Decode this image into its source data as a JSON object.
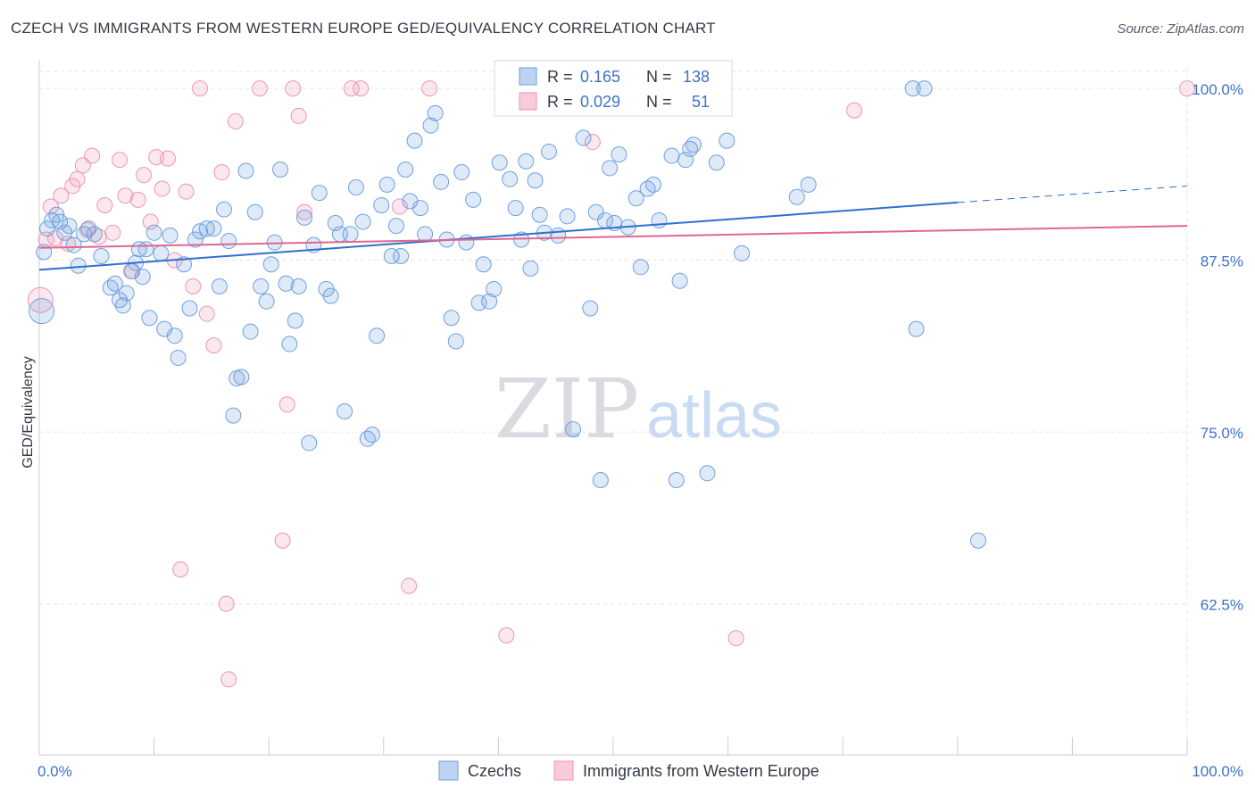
{
  "header": {
    "title": "CZECH VS IMMIGRANTS FROM WESTERN EUROPE GED/EQUIVALENCY CORRELATION CHART",
    "source": "Source: ZipAtlas.com"
  },
  "watermark": {
    "zip": "ZIP",
    "atlas": "atlas"
  },
  "colors": {
    "czechs": "#6f9fde",
    "immigrants": "#ee95b2",
    "czechs_line": "#2f6fce",
    "immigrants_line": "#e0668f",
    "tick_label": "#3d72c9"
  },
  "stats": {
    "czechs": {
      "r_label": "R =",
      "r": "0.165",
      "n_label": "N =",
      "n": "138"
    },
    "immigrants": {
      "r_label": "R =",
      "r": "0.029",
      "n_label": "N =",
      "n": "51"
    }
  },
  "chart_data": {
    "type": "scatter",
    "title": "CZECH VS IMMIGRANTS FROM WESTERN EUROPE GED/EQUIVALENCY CORRELATION CHART",
    "xlabel": "",
    "ylabel": "GED/Equivalency",
    "xlim": [
      0,
      100
    ],
    "ylim": [
      51.5,
      101.5
    ],
    "x_tick_labels": [
      "0.0%",
      "100.0%"
    ],
    "y_ticks": [
      62.5,
      75.0,
      87.5,
      100.0
    ],
    "y_tick_labels": [
      "62.5%",
      "75.0%",
      "87.5%",
      "100.0%"
    ],
    "grid": true,
    "legend_position": "bottom-center",
    "series": [
      {
        "name": "Czechs",
        "color": "#6f9fde",
        "trend": {
          "x": [
            0,
            80,
            100
          ],
          "y": [
            86.8,
            91.7,
            92.9
          ],
          "solid_until": 80
        },
        "points": [
          [
            0.2,
            83.8
          ],
          [
            0.4,
            88.1
          ],
          [
            0.7,
            89.8
          ],
          [
            1.1,
            90.4
          ],
          [
            1.5,
            90.8
          ],
          [
            1.8,
            90.3
          ],
          [
            2.2,
            89.5
          ],
          [
            2.6,
            90.0
          ],
          [
            3.0,
            88.6
          ],
          [
            3.4,
            87.1
          ],
          [
            3.9,
            89.4
          ],
          [
            4.3,
            89.8
          ],
          [
            4.8,
            89.4
          ],
          [
            5.4,
            87.8
          ],
          [
            6.2,
            85.5
          ],
          [
            6.6,
            85.8
          ],
          [
            7.0,
            84.6
          ],
          [
            7.3,
            84.2
          ],
          [
            7.6,
            85.1
          ],
          [
            8.1,
            86.7
          ],
          [
            8.4,
            87.3
          ],
          [
            8.7,
            88.3
          ],
          [
            9.0,
            86.3
          ],
          [
            9.3,
            88.3
          ],
          [
            9.6,
            83.3
          ],
          [
            10.0,
            89.5
          ],
          [
            10.6,
            88.0
          ],
          [
            10.9,
            82.5
          ],
          [
            11.4,
            89.3
          ],
          [
            11.8,
            82.0
          ],
          [
            12.1,
            80.4
          ],
          [
            12.6,
            87.2
          ],
          [
            13.1,
            84.0
          ],
          [
            13.6,
            89.0
          ],
          [
            14.0,
            89.6
          ],
          [
            14.6,
            89.8
          ],
          [
            15.2,
            89.8
          ],
          [
            15.7,
            85.6
          ],
          [
            16.1,
            91.2
          ],
          [
            16.5,
            88.9
          ],
          [
            16.9,
            76.2
          ],
          [
            17.2,
            78.9
          ],
          [
            17.6,
            79.0
          ],
          [
            18.0,
            94.0
          ],
          [
            18.4,
            82.3
          ],
          [
            18.8,
            91.0
          ],
          [
            19.3,
            85.6
          ],
          [
            19.8,
            84.5
          ],
          [
            20.2,
            87.2
          ],
          [
            20.5,
            88.8
          ],
          [
            21.0,
            94.1
          ],
          [
            21.5,
            85.8
          ],
          [
            21.8,
            81.4
          ],
          [
            22.3,
            83.1
          ],
          [
            22.6,
            85.6
          ],
          [
            23.1,
            90.6
          ],
          [
            23.5,
            74.2
          ],
          [
            23.9,
            88.6
          ],
          [
            24.4,
            92.4
          ],
          [
            25.0,
            85.4
          ],
          [
            25.4,
            84.9
          ],
          [
            25.8,
            90.2
          ],
          [
            26.2,
            89.4
          ],
          [
            26.6,
            76.5
          ],
          [
            27.1,
            89.4
          ],
          [
            27.6,
            92.8
          ],
          [
            28.2,
            90.3
          ],
          [
            28.6,
            74.5
          ],
          [
            29.0,
            74.8
          ],
          [
            29.4,
            82.0
          ],
          [
            29.8,
            91.5
          ],
          [
            30.3,
            93.0
          ],
          [
            30.7,
            87.8
          ],
          [
            31.1,
            90.0
          ],
          [
            31.5,
            87.8
          ],
          [
            31.9,
            94.1
          ],
          [
            32.3,
            91.8
          ],
          [
            32.7,
            96.2
          ],
          [
            33.2,
            91.3
          ],
          [
            33.6,
            89.4
          ],
          [
            34.1,
            97.3
          ],
          [
            34.5,
            98.2
          ],
          [
            35.0,
            93.2
          ],
          [
            35.5,
            89.0
          ],
          [
            35.9,
            83.3
          ],
          [
            36.3,
            81.6
          ],
          [
            36.8,
            93.9
          ],
          [
            37.2,
            88.8
          ],
          [
            37.8,
            91.9
          ],
          [
            38.3,
            84.4
          ],
          [
            38.7,
            87.2
          ],
          [
            39.2,
            84.5
          ],
          [
            39.6,
            85.4
          ],
          [
            40.1,
            94.6
          ],
          [
            40.6,
            98.6
          ],
          [
            41.0,
            93.4
          ],
          [
            41.5,
            91.3
          ],
          [
            42.0,
            89.0
          ],
          [
            42.4,
            94.7
          ],
          [
            42.8,
            86.9
          ],
          [
            43.2,
            93.3
          ],
          [
            43.6,
            90.8
          ],
          [
            44.0,
            89.5
          ],
          [
            44.4,
            95.4
          ],
          [
            45.2,
            89.3
          ],
          [
            45.6,
            100.0
          ],
          [
            46.0,
            90.7
          ],
          [
            46.5,
            75.2
          ],
          [
            47.4,
            96.4
          ],
          [
            48.0,
            84.0
          ],
          [
            48.5,
            91.0
          ],
          [
            48.9,
            71.5
          ],
          [
            49.3,
            90.4
          ],
          [
            49.7,
            94.2
          ],
          [
            50.1,
            90.2
          ],
          [
            50.5,
            95.2
          ],
          [
            51.3,
            89.9
          ],
          [
            52.0,
            92.0
          ],
          [
            52.4,
            87.0
          ],
          [
            53.0,
            92.7
          ],
          [
            53.5,
            93.0
          ],
          [
            54.0,
            90.4
          ],
          [
            55.1,
            95.1
          ],
          [
            55.5,
            71.5
          ],
          [
            55.8,
            86.0
          ],
          [
            56.3,
            94.8
          ],
          [
            56.7,
            95.6
          ],
          [
            57.0,
            95.9
          ],
          [
            58.2,
            72.0
          ],
          [
            59.0,
            94.6
          ],
          [
            59.9,
            96.2
          ],
          [
            61.2,
            88.0
          ],
          [
            66.0,
            92.1
          ],
          [
            67.0,
            93.0
          ],
          [
            76.1,
            100.0
          ],
          [
            76.4,
            82.5
          ],
          [
            77.1,
            100.0
          ],
          [
            81.8,
            67.1
          ]
        ]
      },
      {
        "name": "Immigrants from Western Europe",
        "color": "#ee95b2",
        "trend": {
          "x": [
            0,
            100
          ],
          "y": [
            88.4,
            90.0
          ]
        },
        "points": [
          [
            0.1,
            84.6
          ],
          [
            0.6,
            89.0
          ],
          [
            1.0,
            91.4
          ],
          [
            1.4,
            89.1
          ],
          [
            1.9,
            92.2
          ],
          [
            2.5,
            88.7
          ],
          [
            2.9,
            92.9
          ],
          [
            3.3,
            93.4
          ],
          [
            3.8,
            94.4
          ],
          [
            4.2,
            89.7
          ],
          [
            4.6,
            95.1
          ],
          [
            5.2,
            89.2
          ],
          [
            5.7,
            91.5
          ],
          [
            6.4,
            89.5
          ],
          [
            7.0,
            94.8
          ],
          [
            7.5,
            92.2
          ],
          [
            8.0,
            86.7
          ],
          [
            8.6,
            91.9
          ],
          [
            9.1,
            93.7
          ],
          [
            9.7,
            90.3
          ],
          [
            10.2,
            95.0
          ],
          [
            10.7,
            92.7
          ],
          [
            11.2,
            94.9
          ],
          [
            11.8,
            87.5
          ],
          [
            12.3,
            65.0
          ],
          [
            12.8,
            92.5
          ],
          [
            13.4,
            85.6
          ],
          [
            14.0,
            100.0
          ],
          [
            14.6,
            83.6
          ],
          [
            15.2,
            81.3
          ],
          [
            15.9,
            93.9
          ],
          [
            16.3,
            62.5
          ],
          [
            16.5,
            57.0
          ],
          [
            17.1,
            97.6
          ],
          [
            19.2,
            100.0
          ],
          [
            21.2,
            67.1
          ],
          [
            21.6,
            77.0
          ],
          [
            22.1,
            100.0
          ],
          [
            22.6,
            98.0
          ],
          [
            23.1,
            91.0
          ],
          [
            27.2,
            100.0
          ],
          [
            28.0,
            100.0
          ],
          [
            31.4,
            91.4
          ],
          [
            32.2,
            63.8
          ],
          [
            34.0,
            100.0
          ],
          [
            40.7,
            60.2
          ],
          [
            48.2,
            96.1
          ],
          [
            55.1,
            100.0
          ],
          [
            60.7,
            60.0
          ],
          [
            71.0,
            98.4
          ],
          [
            100.0,
            100.0
          ]
        ]
      }
    ]
  },
  "legend": [
    {
      "label": "Czechs",
      "color": "#6f9fde"
    },
    {
      "label": "Immigrants from Western Europe",
      "color": "#ee95b2"
    }
  ]
}
